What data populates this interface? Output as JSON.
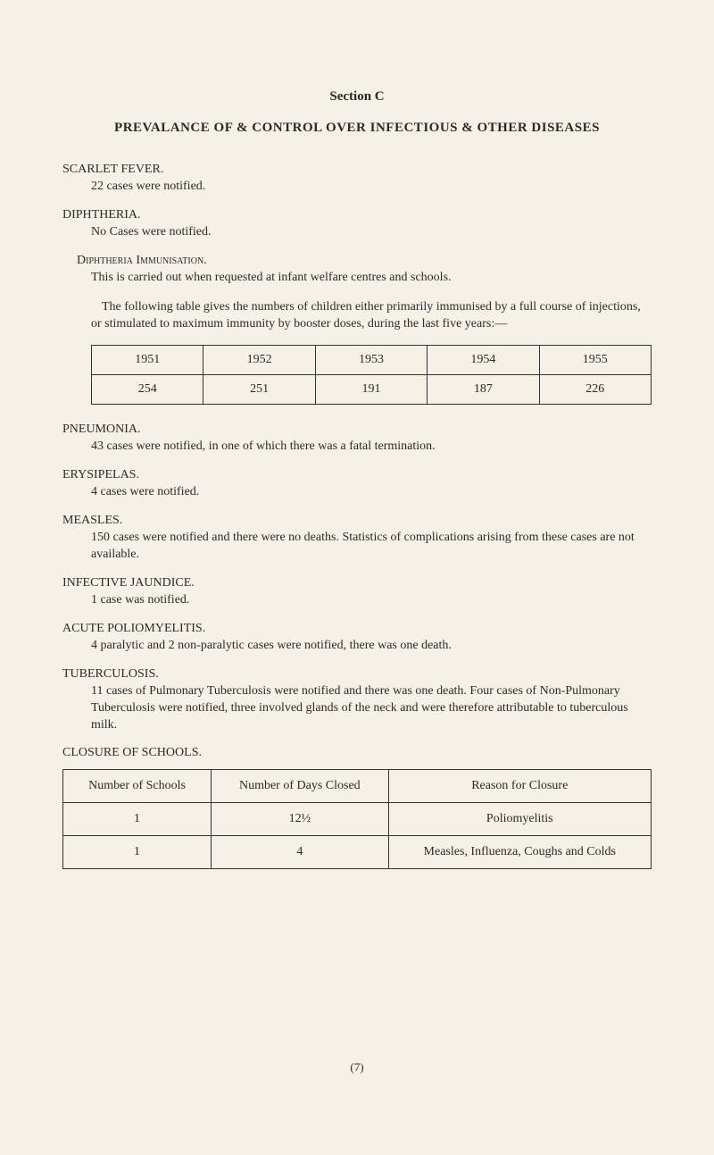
{
  "section_title": "Section C",
  "main_heading": "PREVALANCE OF & CONTROL OVER INFECTIOUS & OTHER DISEASES",
  "scarlet_fever": {
    "heading": "SCARLET FEVER.",
    "text": "22 cases were notified."
  },
  "diphtheria": {
    "heading": "DIPHTHERIA.",
    "text": "No Cases were notified."
  },
  "diph_immun": {
    "heading_pre": "Diphtheria ",
    "heading_smallcaps": "Immunisation.",
    "text1": "This is carried out when requested at infant welfare centres and schools.",
    "text2": "The following table gives the numbers of children either primarily immunised by a full course of injections, or stimulated to maximum immunity by booster doses, during the last five years:—"
  },
  "immun_table": {
    "years": [
      "1951",
      "1952",
      "1953",
      "1954",
      "1955"
    ],
    "values": [
      "254",
      "251",
      "191",
      "187",
      "226"
    ]
  },
  "pneumonia": {
    "heading": "PNEUMONIA.",
    "text": "43 cases were notified, in one of which there was a fatal termination."
  },
  "erysipelas": {
    "heading": "ERYSIPELAS.",
    "text": "4 cases were notified."
  },
  "measles": {
    "heading": "MEASLES.",
    "text": "150 cases were notified and there were no deaths. Statistics of complications arising from these cases are not available."
  },
  "jaundice": {
    "heading": "INFECTIVE JAUNDICE.",
    "text": "1 case was notified."
  },
  "polio": {
    "heading": "ACUTE POLIOMYELITIS.",
    "text": "4 paralytic and 2 non-paralytic cases were notified, there was one death."
  },
  "tb": {
    "heading": "TUBERCULOSIS.",
    "text": "11 cases of Pulmonary Tuberculosis were notified and there was one death. Four cases of Non-Pulmonary Tuberculosis were notified, three involved glands of the neck and were therefore attributable to tuberculous milk."
  },
  "closure": {
    "heading": "CLOSURE OF SCHOOLS.",
    "col1": "Number of Schools",
    "col2": "Number of Days Closed",
    "col3": "Reason for Closure",
    "rows": [
      [
        "1",
        "12½",
        "Poliomyelitis"
      ],
      [
        "1",
        "4",
        "Measles, Influenza, Coughs and Colds"
      ]
    ]
  },
  "page_num": "(7)"
}
